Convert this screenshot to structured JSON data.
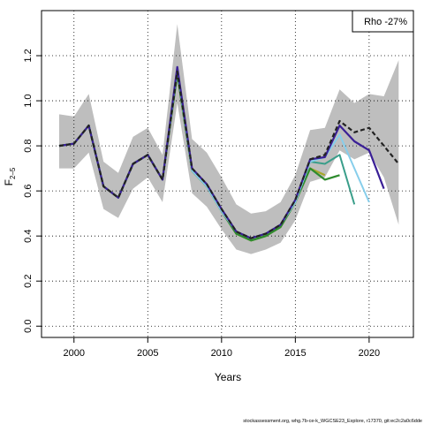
{
  "chart_data": {
    "type": "line",
    "xlabel": "Years",
    "ylabel_main": "F",
    "ylabel_sub": "2–5",
    "xlim": [
      1997.8,
      2023
    ],
    "ylim": [
      -0.05,
      1.4
    ],
    "x_ticks": [
      2000,
      2005,
      2010,
      2015,
      2020
    ],
    "y_ticks": [
      0.0,
      0.2,
      0.4,
      0.6,
      0.8,
      1.0,
      1.2
    ],
    "y_tick_labels": [
      "0.0",
      "0.2",
      "0.4",
      "0.6",
      "0.8",
      "1.0",
      "1.2"
    ],
    "grid": true,
    "legend": {
      "text": "Rho -27%",
      "position": "top-right"
    },
    "confidence_band": {
      "x": [
        1999,
        2000,
        2001,
        2002,
        2003,
        2004,
        2005,
        2006,
        2007,
        2008,
        2009,
        2010,
        2011,
        2012,
        2013,
        2014,
        2015,
        2016,
        2017,
        2018,
        2019,
        2020,
        2021,
        2022
      ],
      "upper": [
        0.94,
        0.93,
        1.03,
        0.73,
        0.68,
        0.84,
        0.88,
        0.76,
        1.34,
        0.83,
        0.77,
        0.66,
        0.54,
        0.5,
        0.51,
        0.55,
        0.67,
        0.87,
        0.88,
        1.05,
        0.99,
        1.03,
        1.02,
        1.18
      ],
      "lower": [
        0.7,
        0.7,
        0.77,
        0.52,
        0.48,
        0.61,
        0.66,
        0.55,
        0.99,
        0.59,
        0.53,
        0.43,
        0.34,
        0.32,
        0.34,
        0.37,
        0.47,
        0.64,
        0.66,
        0.78,
        0.74,
        0.77,
        0.66,
        0.45
      ],
      "color": "#bebebe"
    },
    "series": [
      {
        "x": [
          1999,
          2000,
          2001,
          2002,
          2003,
          2004,
          2005,
          2006,
          2007,
          2008,
          2009,
          2010,
          2011,
          2012,
          2013,
          2014,
          2015,
          2016,
          2017,
          2018,
          2019,
          2020,
          2021,
          2022
        ],
        "y": [
          0.8,
          0.81,
          0.89,
          0.62,
          0.57,
          0.72,
          0.76,
          0.65,
          1.13,
          0.7,
          0.63,
          0.52,
          0.42,
          0.39,
          0.41,
          0.45,
          0.56,
          0.74,
          0.76,
          0.91,
          0.86,
          0.88,
          0.8,
          0.72
        ],
        "color": "#222222",
        "dashed": true,
        "width": 2.2
      },
      {
        "x": [
          1999,
          2000,
          2001,
          2002,
          2003,
          2004,
          2005,
          2006,
          2007,
          2008,
          2009,
          2010,
          2011,
          2012,
          2013,
          2014,
          2015,
          2016,
          2017,
          2018,
          2019,
          2020,
          2021
        ],
        "y": [
          0.8,
          0.81,
          0.89,
          0.62,
          0.57,
          0.72,
          0.76,
          0.65,
          1.15,
          0.7,
          0.63,
          0.52,
          0.42,
          0.39,
          0.41,
          0.45,
          0.56,
          0.74,
          0.75,
          0.89,
          0.82,
          0.78,
          0.61
        ],
        "color": "#3a1f96",
        "dashed": false,
        "width": 2.2
      },
      {
        "x": [
          1999,
          2000,
          2001,
          2002,
          2003,
          2004,
          2005,
          2006,
          2007,
          2008,
          2009,
          2010,
          2011,
          2012,
          2013,
          2014,
          2015,
          2016,
          2017,
          2018,
          2019,
          2020
        ],
        "y": [
          0.8,
          0.81,
          0.89,
          0.62,
          0.57,
          0.72,
          0.76,
          0.65,
          1.14,
          0.69,
          0.62,
          0.51,
          0.42,
          0.39,
          0.41,
          0.45,
          0.55,
          0.73,
          0.75,
          0.85,
          0.7,
          0.55
        ],
        "color": "#87ceeb",
        "dashed": false,
        "width": 2
      },
      {
        "x": [
          1999,
          2000,
          2001,
          2002,
          2003,
          2004,
          2005,
          2006,
          2007,
          2008,
          2009,
          2010,
          2011,
          2012,
          2013,
          2014,
          2015,
          2016,
          2017,
          2018,
          2019
        ],
        "y": [
          0.8,
          0.81,
          0.89,
          0.62,
          0.57,
          0.72,
          0.76,
          0.65,
          1.13,
          0.69,
          0.62,
          0.51,
          0.42,
          0.39,
          0.41,
          0.45,
          0.55,
          0.73,
          0.72,
          0.76,
          0.54
        ],
        "color": "#3a9e8a",
        "dashed": false,
        "width": 2
      },
      {
        "x": [
          1999,
          2000,
          2001,
          2002,
          2003,
          2004,
          2005,
          2006,
          2007,
          2008,
          2009,
          2010,
          2011,
          2012,
          2013,
          2014,
          2015,
          2016,
          2017,
          2018
        ],
        "y": [
          0.8,
          0.81,
          0.89,
          0.62,
          0.57,
          0.72,
          0.76,
          0.65,
          1.12,
          0.69,
          0.62,
          0.51,
          0.41,
          0.38,
          0.4,
          0.44,
          0.55,
          0.7,
          0.65,
          0.67
        ],
        "color": "#2e8b2e",
        "dashed": false,
        "width": 2.2
      },
      {
        "x": [
          1999,
          2000,
          2001,
          2002,
          2003,
          2004,
          2005,
          2006,
          2007,
          2008,
          2009,
          2010,
          2011,
          2012,
          2013,
          2014,
          2015,
          2016,
          2017
        ],
        "y": [
          0.8,
          0.81,
          0.89,
          0.62,
          0.57,
          0.72,
          0.76,
          0.65,
          1.12,
          0.69,
          0.62,
          0.51,
          0.41,
          0.38,
          0.4,
          0.44,
          0.55,
          0.7,
          0.67
        ],
        "color": "#a7a72a",
        "dashed": false,
        "width": 2.2
      }
    ]
  },
  "footer": "stockassessment.org, whg.7b-ce-k_WGCSE23_Explore, r17370, git:ec2c2a0c6dde"
}
